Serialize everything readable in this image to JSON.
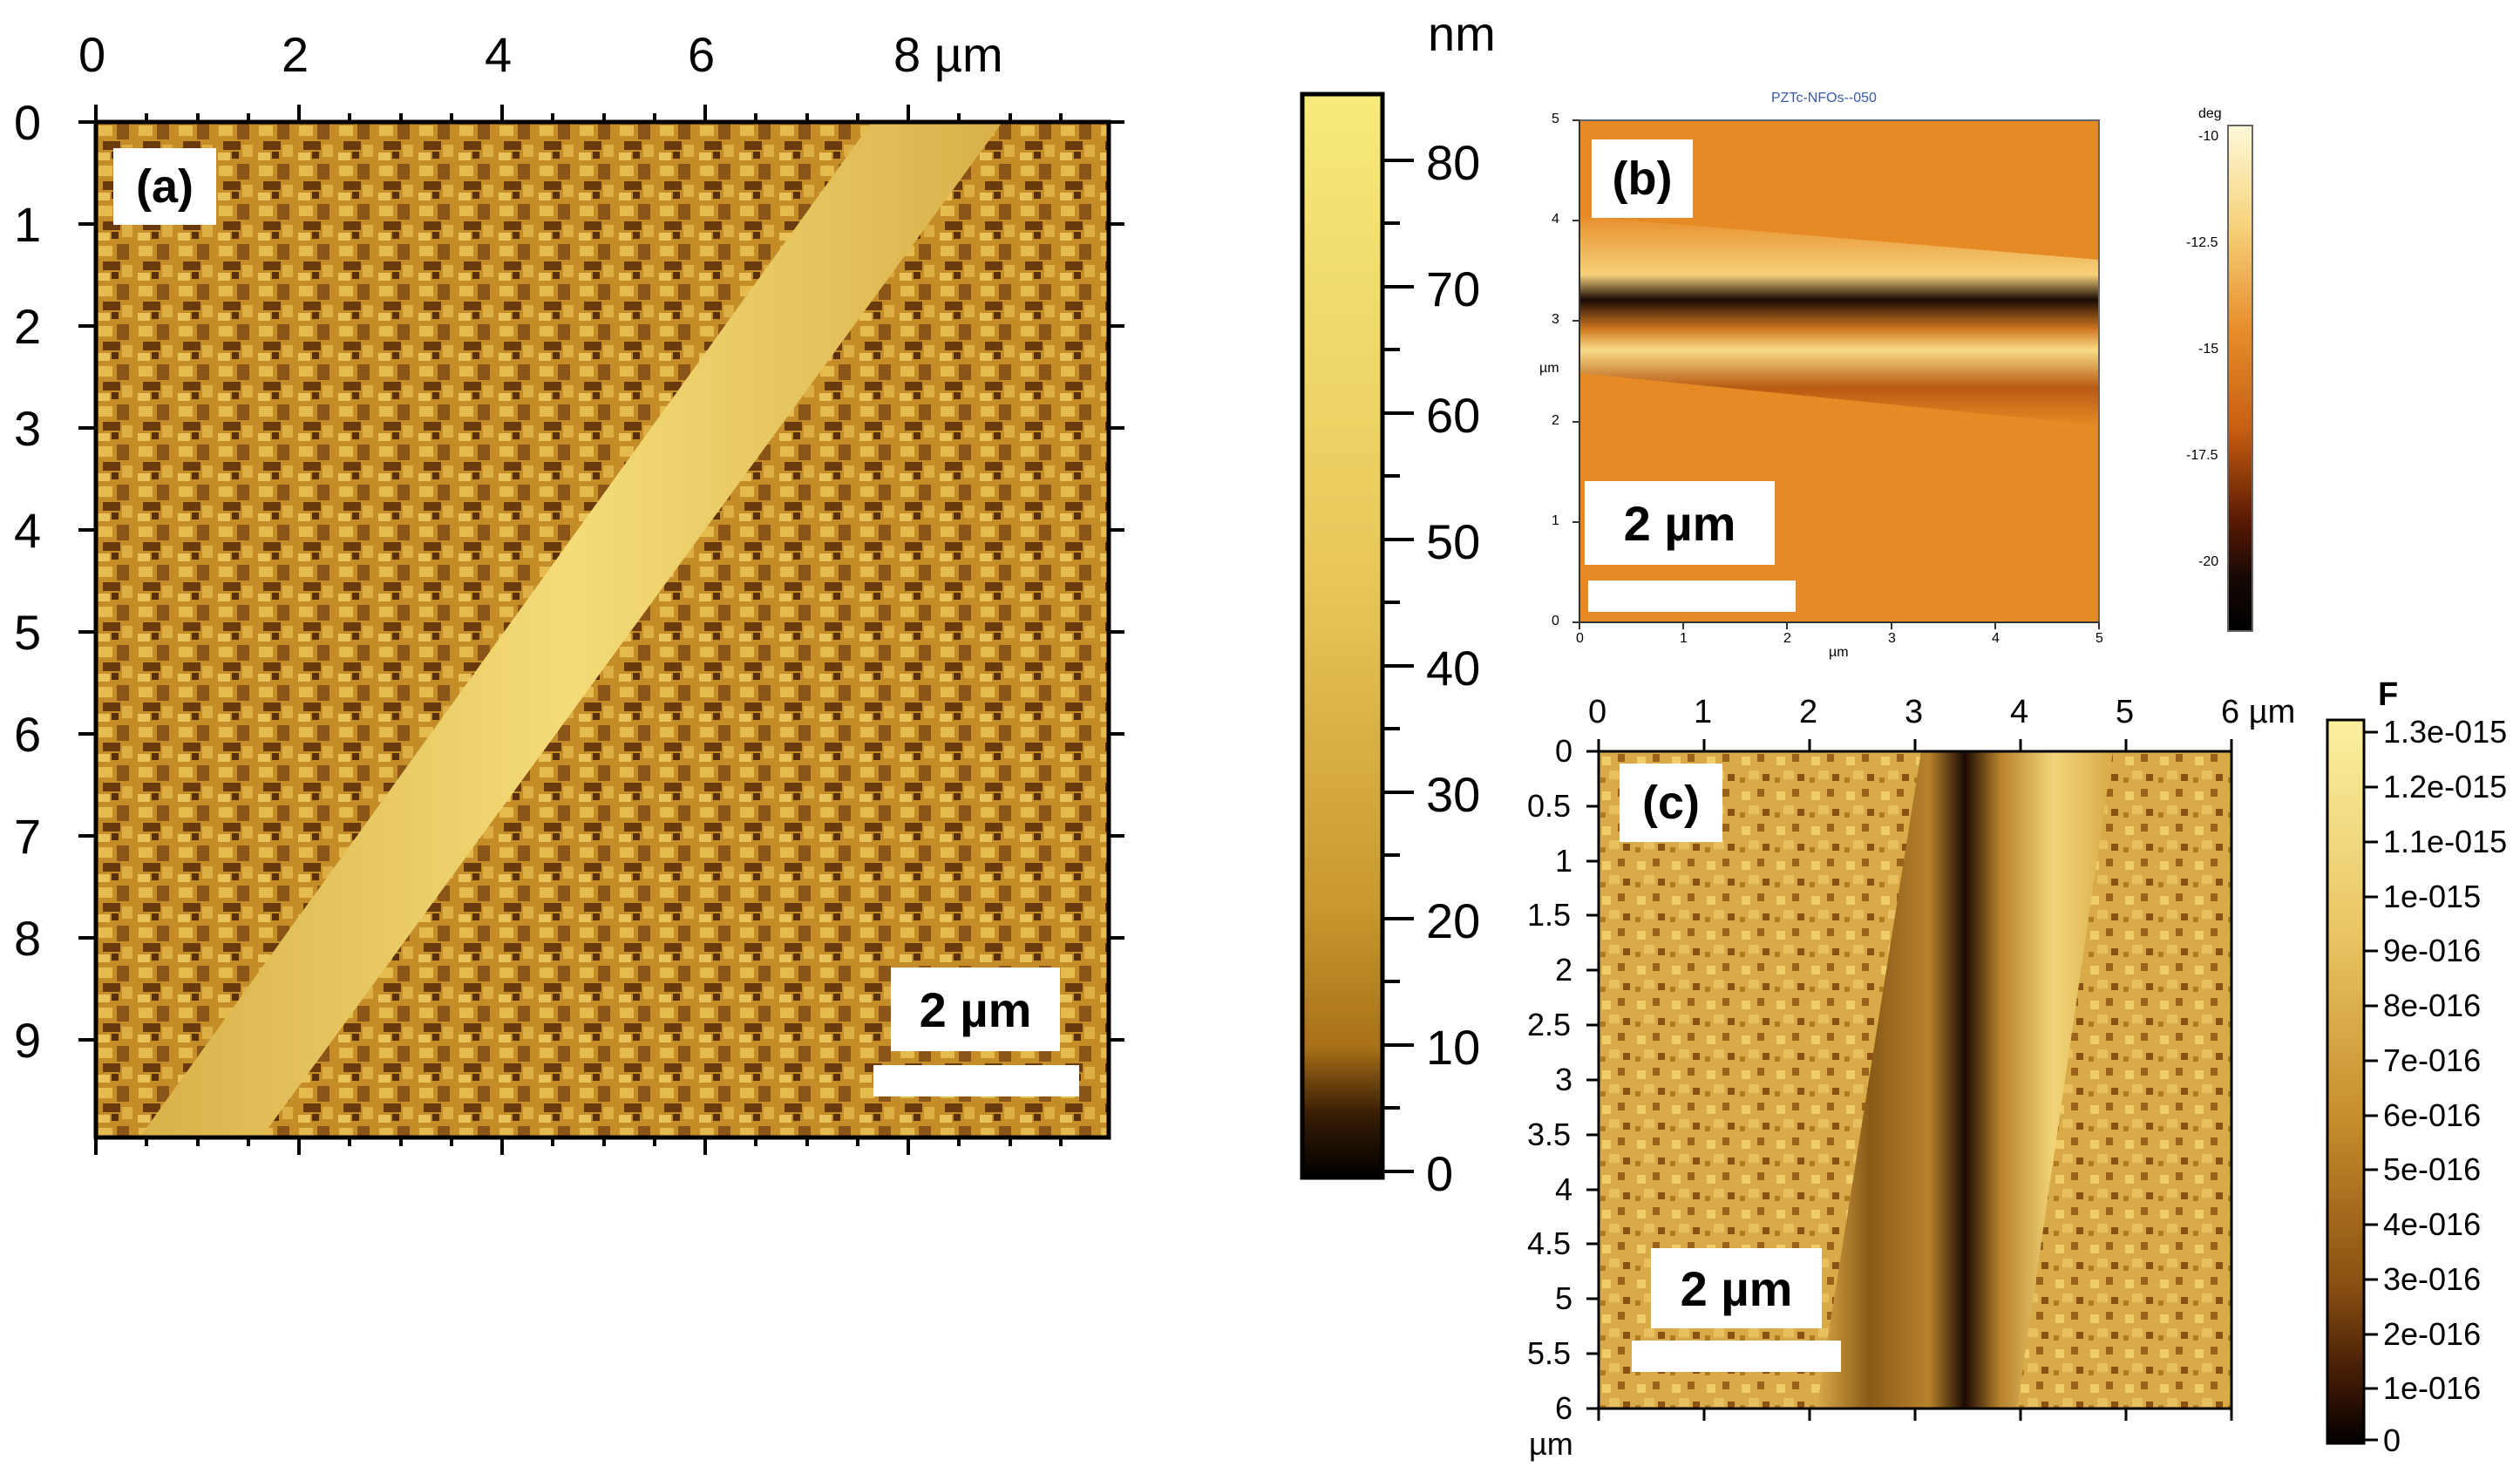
{
  "panel_a": {
    "tag": "(a)",
    "x_ticks": [
      "0",
      "2",
      "4",
      "6",
      "8 µm"
    ],
    "y_ticks": [
      "0",
      "1",
      "2",
      "3",
      "4",
      "5",
      "6",
      "7",
      "8",
      "9"
    ],
    "scale_bar": "2 µm",
    "colorbar": {
      "unit": "nm",
      "ticks": [
        "80",
        "70",
        "60",
        "50",
        "40",
        "30",
        "20",
        "10",
        "0"
      ]
    }
  },
  "panel_b": {
    "tag": "(b)",
    "title": "PZTc-NFOs--050",
    "x_label": "µm",
    "y_label": "µm",
    "x_ticks": [
      "0",
      "1",
      "2",
      "3",
      "4",
      "5"
    ],
    "y_ticks": [
      "0",
      "1",
      "2",
      "3",
      "4",
      "5"
    ],
    "scale_bar": "2 µm",
    "colorbar": {
      "unit": "deg",
      "ticks": [
        "-10",
        "-12.5",
        "-15",
        "-17.5",
        "-20"
      ]
    }
  },
  "panel_c": {
    "tag": "(c)",
    "x_ticks": [
      "0",
      "1",
      "2",
      "3",
      "4",
      "5",
      "6 µm"
    ],
    "y_ticks": [
      "0",
      "0.5",
      "1",
      "1.5",
      "2",
      "2.5",
      "3",
      "3.5",
      "4",
      "4.5",
      "5",
      "5.5",
      "6"
    ],
    "y_unit": "µm",
    "scale_bar": "2 µm",
    "colorbar": {
      "unit": "F",
      "ticks": [
        "1.3e-015",
        "1.2e-015",
        "1.1e-015",
        "1e-015",
        "9e-016",
        "8e-016",
        "7e-016",
        "6e-016",
        "5e-016",
        "4e-016",
        "3e-016",
        "2e-016",
        "1e-016",
        "0"
      ]
    }
  },
  "colors": {
    "afm_light": "#f0d56a",
    "afm_mid": "#c8962e",
    "afm_dark": "#4a2a08",
    "phase_orange": "#e58a25",
    "phase_light": "#f7e08a",
    "phase_dark": "#140805"
  }
}
